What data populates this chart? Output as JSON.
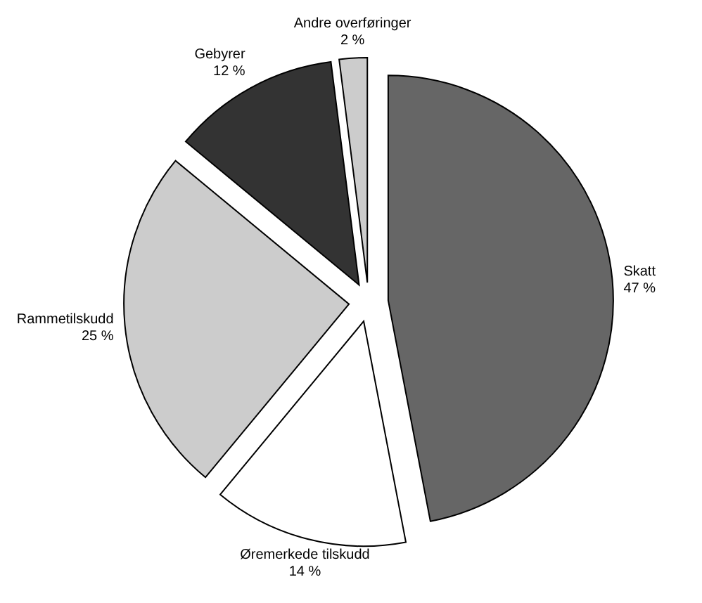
{
  "chart_data": {
    "type": "pie",
    "categories": [
      "Skatt",
      "Øremerkede tilskudd",
      "Rammetilskudd",
      "Gebyrer",
      "Andre overføringer"
    ],
    "values": [
      47,
      14,
      25,
      12,
      2
    ],
    "colors": [
      "#666666",
      "#ffffff",
      "#cccccc",
      "#333333",
      "#cccccc"
    ],
    "value_labels": [
      "47 %",
      "14 %",
      "25 %",
      "12 %",
      "2 %"
    ]
  }
}
